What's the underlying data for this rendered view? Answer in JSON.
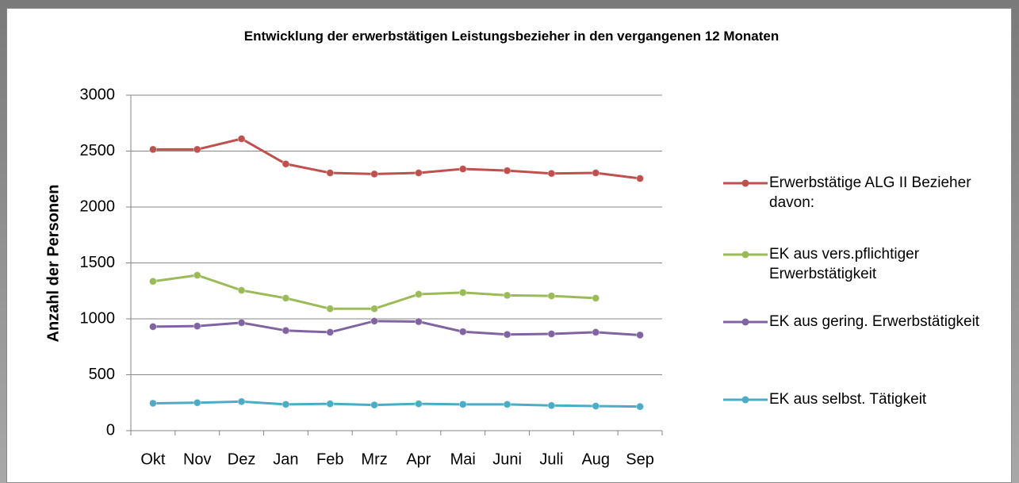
{
  "chart_data": {
    "type": "line",
    "title": "Entwicklung der erwerbstätigen Leistungsbezieher in den vergangenen 12 Monaten",
    "y_label": "Anzahl der Personen",
    "categories": [
      "Okt",
      "Nov",
      "Dez",
      "Jan",
      "Feb",
      "Mrz",
      "Apr",
      "Mai",
      "Juni",
      "Juli",
      "Aug",
      "Sep"
    ],
    "series": [
      {
        "name": "Erwerbstätige ALG II Bezieher davon:",
        "color": "#c0504d",
        "values": [
          2515,
          2515,
          2610,
          2385,
          2305,
          2295,
          2305,
          2340,
          2325,
          2300,
          2305,
          2255
        ]
      },
      {
        "name": "EK aus vers.pflichtiger Erwerbstätigkeit",
        "color": "#9bbb59",
        "values": [
          1335,
          1390,
          1255,
          1185,
          1090,
          1090,
          1220,
          1235,
          1210,
          1205,
          1185,
          null
        ]
      },
      {
        "name": "EK aus gering. Erwerbstätigkeit",
        "color": "#8064a2",
        "values": [
          930,
          935,
          965,
          895,
          880,
          980,
          975,
          885,
          860,
          865,
          880,
          855
        ]
      },
      {
        "name": "EK aus selbst. Tätigkeit",
        "color": "#4bacc6",
        "values": [
          245,
          250,
          260,
          235,
          240,
          230,
          240,
          235,
          235,
          225,
          220,
          215
        ]
      }
    ],
    "ylim": [
      0,
      3000
    ],
    "yticks": [
      0,
      500,
      1000,
      1500,
      2000,
      2500,
      3000
    ],
    "grid": true,
    "legend": "right"
  }
}
